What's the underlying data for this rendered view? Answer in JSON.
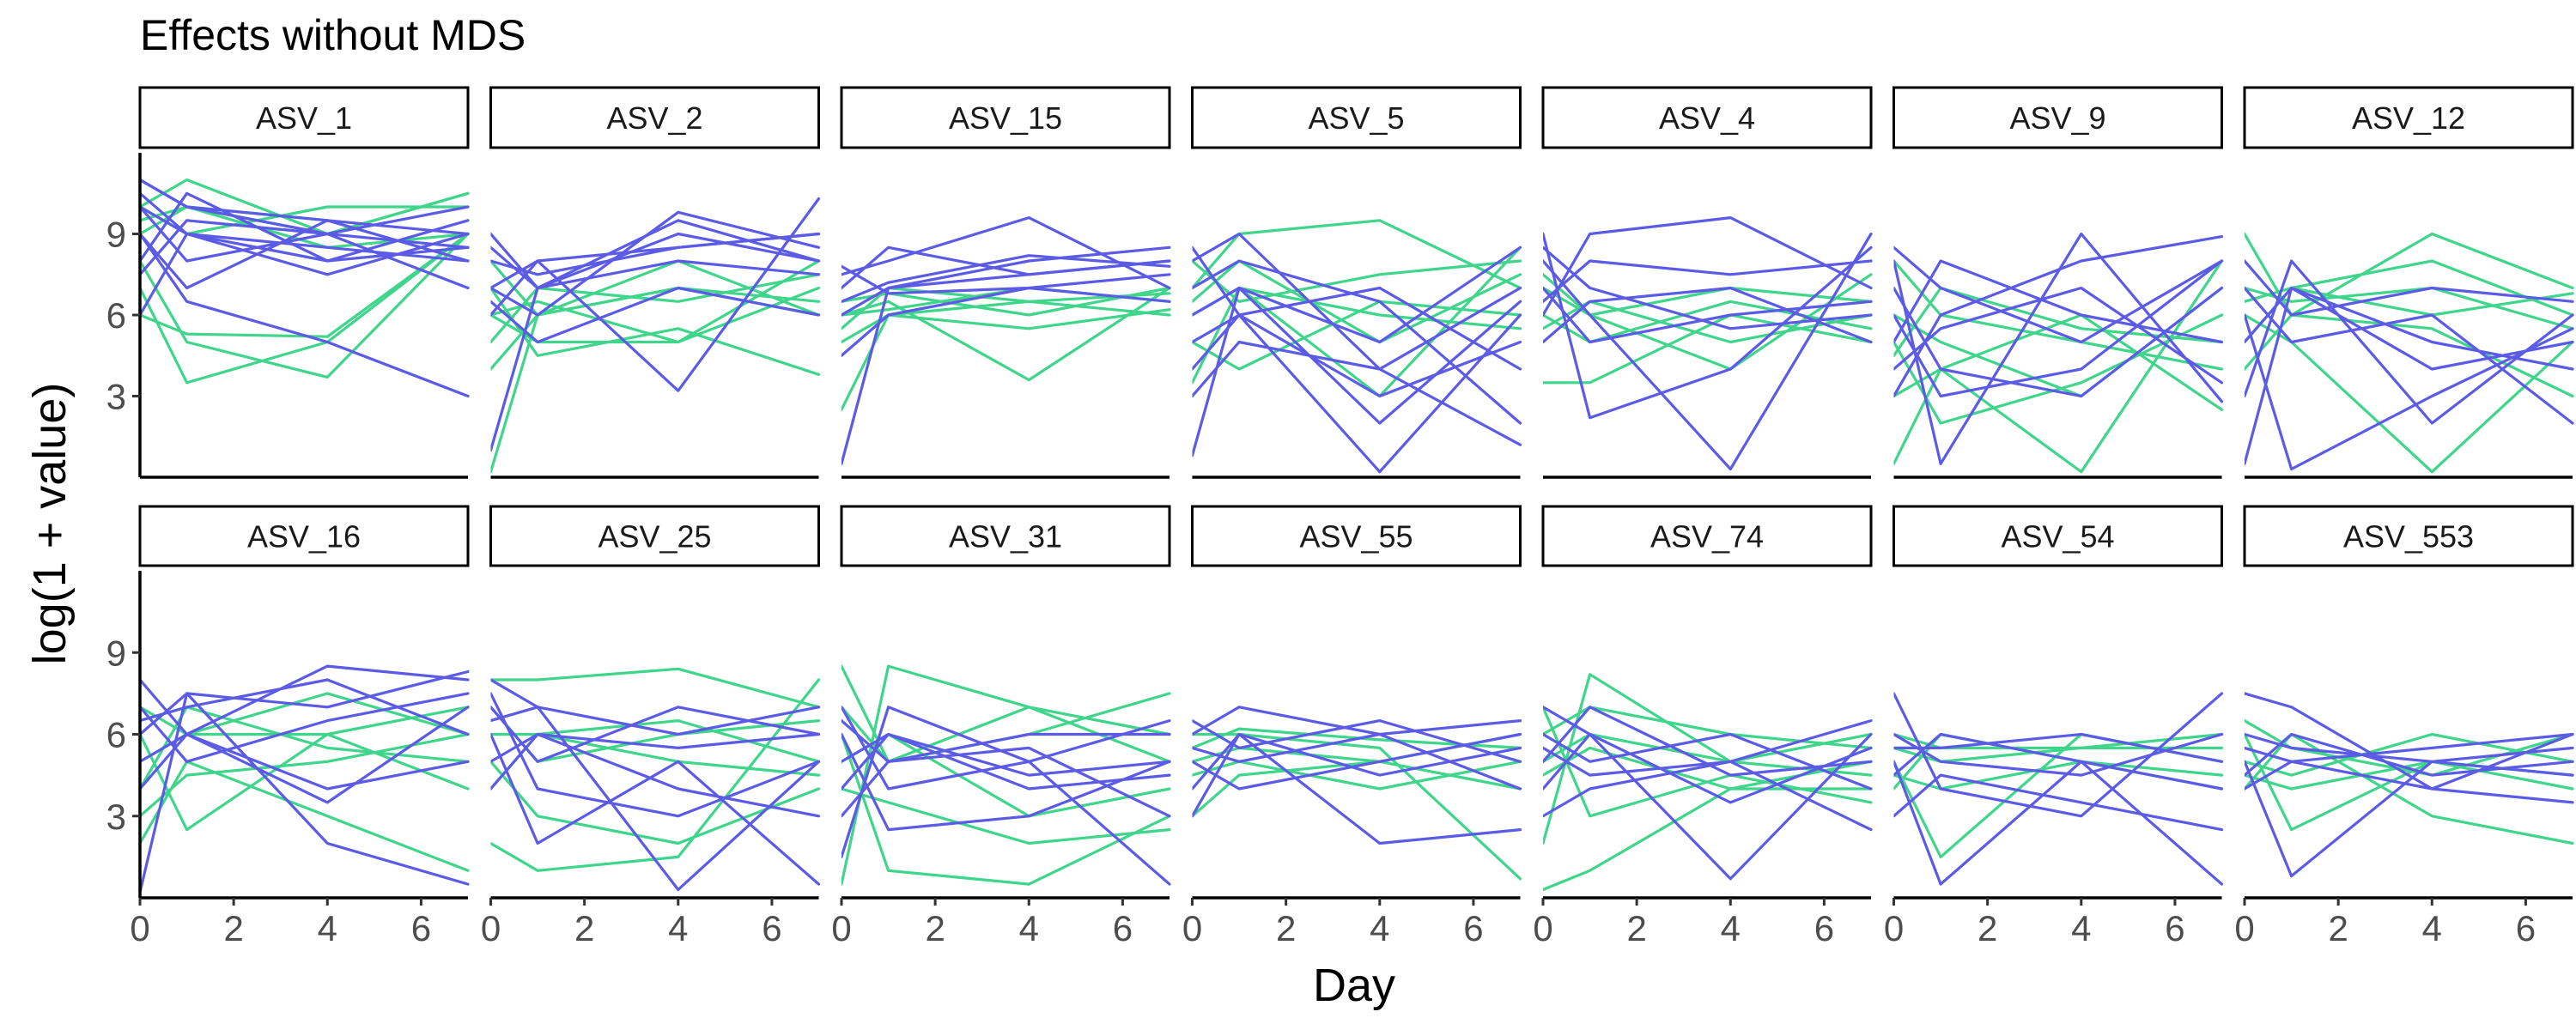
{
  "chart_data": {
    "type": "line",
    "title": "Effects without MDS",
    "xlabel": "Day",
    "ylabel": "log(1 + value)",
    "xlim": [
      0,
      7
    ],
    "ylim": [
      0,
      12
    ],
    "x_ticks": [
      0,
      2,
      4,
      6
    ],
    "y_ticks": [
      3,
      6,
      9
    ],
    "x_values": [
      0,
      1,
      4,
      7
    ],
    "grid": false,
    "legend": "none",
    "colors": {
      "group_a": "#5b5be6",
      "group_b": "#3fd58a"
    },
    "panels": [
      {
        "label": "ASV_1",
        "group_a": [
          [
            11,
            10,
            9,
            8.5
          ],
          [
            9,
            7,
            9.5,
            8
          ],
          [
            10,
            8,
            9,
            7
          ],
          [
            8,
            10.5,
            8,
            9.5
          ],
          [
            10.5,
            9,
            8.5,
            8
          ],
          [
            6,
            9,
            7.5,
            9
          ],
          [
            9,
            6.5,
            5,
            3
          ],
          [
            11,
            10,
            9.5,
            9
          ],
          [
            10,
            9,
            8,
            8.5
          ],
          [
            7.5,
            9.5,
            9,
            10
          ]
        ],
        "group_b": [
          [
            11,
            10,
            8.5,
            9
          ],
          [
            7,
            3.5,
            5,
            9
          ],
          [
            6,
            5.3,
            5.2,
            9
          ],
          [
            10,
            11,
            9,
            10.5
          ],
          [
            9,
            10,
            9.5,
            8
          ],
          [
            8,
            5,
            3.7,
            9
          ],
          [
            10,
            9,
            10,
            10
          ],
          [
            9.5,
            10,
            9,
            10.5
          ]
        ]
      },
      {
        "label": "ASV_2",
        "group_a": [
          [
            9,
            7,
            9.5,
            8
          ],
          [
            8,
            7.5,
            8.5,
            9
          ],
          [
            7,
            6,
            9.8,
            8.5
          ],
          [
            6,
            8,
            3.2,
            10.3
          ],
          [
            8.5,
            7,
            9,
            8
          ],
          [
            1,
            7,
            8,
            7.5
          ],
          [
            7,
            8,
            8.5,
            9
          ],
          [
            6.5,
            5,
            7,
            6
          ]
        ],
        "group_b": [
          [
            6,
            5,
            5,
            7
          ],
          [
            0.2,
            6,
            8,
            6
          ],
          [
            7,
            4.5,
            5.5,
            3.8
          ],
          [
            5,
            7,
            6.5,
            7.5
          ],
          [
            8,
            6,
            7,
            6.5
          ],
          [
            6,
            6.5,
            5,
            8
          ],
          [
            4,
            6,
            7,
            6
          ]
        ]
      },
      {
        "label": "ASV_15",
        "group_a": [
          [
            0.5,
            7,
            7.5,
            8
          ],
          [
            7.5,
            8,
            9.6,
            7
          ],
          [
            6,
            7,
            8,
            8.5
          ],
          [
            4.5,
            6,
            7,
            6.5
          ],
          [
            7,
            8.5,
            7.5,
            8
          ],
          [
            6.5,
            7.2,
            8.2,
            7.8
          ],
          [
            7.8,
            6.8,
            7,
            7.5
          ]
        ],
        "group_b": [
          [
            2.5,
            6,
            6.5,
            6
          ],
          [
            6,
            6.5,
            3.6,
            7
          ],
          [
            5,
            6,
            5.5,
            6.2
          ],
          [
            6.5,
            6.8,
            6,
            7
          ],
          [
            5.5,
            7,
            6.5,
            6.8
          ],
          [
            6,
            6.2,
            7,
            6.5
          ]
        ]
      },
      {
        "label": "ASV_5",
        "group_a": [
          [
            0.8,
            7,
            2,
            6.5
          ],
          [
            8,
            9,
            4,
            1.2
          ],
          [
            5,
            6,
            0.2,
            6
          ],
          [
            7,
            8,
            6.5,
            2
          ],
          [
            3,
            5,
            4,
            7
          ],
          [
            6,
            7,
            5,
            8.5
          ],
          [
            4,
            6,
            3,
            5
          ],
          [
            8.5,
            6,
            7,
            4
          ]
        ],
        "group_b": [
          [
            7,
            9,
            9.5,
            7
          ],
          [
            3.5,
            7,
            3,
            8.5
          ],
          [
            6,
            7,
            6,
            5.5
          ],
          [
            8,
            6.5,
            7.5,
            8
          ],
          [
            5,
            4,
            6.5,
            6
          ],
          [
            6.5,
            8,
            5,
            7.5
          ]
        ]
      },
      {
        "label": "ASV_4",
        "group_a": [
          [
            9,
            2.2,
            4,
            8.5
          ],
          [
            8,
            6,
            0.3,
            9
          ],
          [
            6,
            9,
            9.6,
            7
          ],
          [
            7,
            5,
            6,
            6.5
          ],
          [
            8.5,
            7,
            5.5,
            6
          ],
          [
            5,
            6.5,
            7,
            5
          ],
          [
            6.5,
            8,
            7.5,
            8
          ]
        ],
        "group_b": [
          [
            3.5,
            3.5,
            6,
            5
          ],
          [
            7,
            6,
            4,
            7.5
          ],
          [
            5.5,
            6.5,
            5,
            6
          ],
          [
            6,
            5,
            6.5,
            5.5
          ],
          [
            7.5,
            6,
            7,
            6.5
          ]
        ]
      },
      {
        "label": "ASV_9",
        "group_a": [
          [
            8,
            0.5,
            9,
            2.8
          ],
          [
            3,
            6,
            8,
            8.9
          ],
          [
            7,
            4,
            3,
            7
          ],
          [
            5,
            8,
            6,
            5
          ],
          [
            8.5,
            7,
            5,
            8
          ],
          [
            4,
            5.5,
            7,
            3.5
          ],
          [
            6,
            3,
            4,
            8
          ]
        ],
        "group_b": [
          [
            0.5,
            4,
            0.2,
            8
          ],
          [
            5,
            2,
            3.5,
            6
          ],
          [
            8,
            6,
            5,
            4
          ],
          [
            3,
            4,
            6,
            2.5
          ],
          [
            6,
            5,
            3,
            7
          ],
          [
            4.5,
            7,
            5.5,
            5
          ]
        ]
      },
      {
        "label": "ASV_12",
        "group_a": [
          [
            3,
            8,
            2,
            6
          ],
          [
            0.5,
            7,
            4,
            5
          ],
          [
            6,
            0.3,
            3,
            5.5
          ],
          [
            8,
            6,
            7,
            6.5
          ],
          [
            5,
            7,
            5,
            4
          ],
          [
            7,
            5,
            6,
            2
          ]
        ],
        "group_b": [
          [
            9,
            6,
            9,
            7
          ],
          [
            5,
            7,
            8,
            6
          ],
          [
            6,
            5,
            0.2,
            5
          ],
          [
            7,
            6.5,
            7,
            5.5
          ],
          [
            4,
            6,
            5.5,
            3
          ],
          [
            6.5,
            7,
            6,
            6.8
          ]
        ]
      },
      {
        "label": "ASV_16",
        "group_a": [
          [
            0.2,
            7.5,
            2,
            0.5
          ],
          [
            8,
            6,
            8.5,
            8
          ],
          [
            5,
            6,
            4,
            5
          ],
          [
            6.5,
            7,
            8,
            6
          ],
          [
            4,
            6,
            3.5,
            7
          ],
          [
            7,
            5,
            6.5,
            7.5
          ],
          [
            6,
            7.5,
            7,
            8.3
          ]
        ],
        "group_b": [
          [
            2,
            5,
            3,
            1
          ],
          [
            6,
            2.5,
            6,
            4
          ],
          [
            5,
            6,
            7.5,
            6
          ],
          [
            3,
            4.5,
            5,
            6
          ],
          [
            7,
            6,
            6,
            7
          ],
          [
            4,
            7,
            5.5,
            5
          ]
        ]
      },
      {
        "label": "ASV_25",
        "group_a": [
          [
            8,
            7,
            0.3,
            5
          ],
          [
            6,
            2,
            5,
            0.5
          ],
          [
            7,
            5,
            7,
            6
          ],
          [
            5,
            6,
            4,
            3
          ],
          [
            6.5,
            7,
            6,
            7
          ],
          [
            4,
            6,
            5.5,
            6
          ],
          [
            7.5,
            4,
            3,
            5
          ]
        ],
        "group_b": [
          [
            8,
            8,
            8.4,
            7
          ],
          [
            2,
            1,
            1.5,
            8
          ],
          [
            6,
            6,
            6.5,
            5
          ],
          [
            5,
            3,
            2,
            4
          ],
          [
            7,
            5,
            6,
            6.5
          ],
          [
            4,
            6,
            5,
            4.5
          ]
        ]
      },
      {
        "label": "ASV_31",
        "group_a": [
          [
            1.5,
            7,
            5,
            0.5
          ],
          [
            6,
            2.5,
            3,
            5
          ],
          [
            5,
            6,
            4,
            4.5
          ],
          [
            3,
            5,
            6,
            6
          ],
          [
            6.5,
            5,
            5.5,
            3
          ],
          [
            4,
            6,
            4.5,
            5
          ],
          [
            7,
            4,
            5,
            6.5
          ]
        ],
        "group_b": [
          [
            8.5,
            5,
            6,
            7.5
          ],
          [
            0.5,
            8.5,
            7,
            5
          ],
          [
            6,
            1,
            0.5,
            3
          ],
          [
            5,
            6,
            3,
            4
          ],
          [
            7,
            5,
            7,
            6
          ],
          [
            4,
            3.5,
            2,
            2.5
          ]
        ]
      },
      {
        "label": "ASV_55",
        "group_a": [
          [
            6,
            7,
            6,
            6.5
          ],
          [
            3,
            6,
            2,
            2.5
          ],
          [
            5,
            4,
            5,
            6
          ],
          [
            6.5,
            5.5,
            6.5,
            5
          ],
          [
            4,
            6,
            4.5,
            5.5
          ],
          [
            5.5,
            5,
            6,
            4
          ]
        ],
        "group_b": [
          [
            5,
            5.5,
            5,
            6
          ],
          [
            6,
            6,
            5.5,
            0.7
          ],
          [
            3,
            4.5,
            5,
            4
          ],
          [
            5.5,
            6.2,
            5.8,
            5.5
          ],
          [
            4.5,
            5,
            4,
            5
          ]
        ]
      },
      {
        "label": "ASV_74",
        "group_a": [
          [
            7,
            6,
            0.7,
            6
          ],
          [
            3,
            4,
            5,
            2.5
          ],
          [
            5,
            7,
            4.5,
            5
          ],
          [
            6,
            5,
            6,
            4
          ],
          [
            4,
            6,
            3.5,
            5.5
          ],
          [
            5.5,
            4.5,
            5,
            6.5
          ]
        ],
        "group_b": [
          [
            2,
            8.2,
            5,
            4.5
          ],
          [
            0.3,
            1,
            4,
            5
          ],
          [
            6,
            7,
            6,
            5.5
          ],
          [
            4.5,
            5.5,
            4,
            4
          ],
          [
            5,
            6,
            5,
            6
          ],
          [
            7,
            3,
            4.5,
            3.5
          ]
        ]
      },
      {
        "label": "ASV_54",
        "group_a": [
          [
            7.5,
            4,
            3,
            7.5
          ],
          [
            5,
            0.5,
            5,
            0.5
          ],
          [
            6,
            5,
            4.5,
            6
          ],
          [
            4.5,
            6,
            5,
            4
          ],
          [
            5.5,
            5.5,
            6,
            5
          ],
          [
            3,
            4.5,
            3.5,
            2.5
          ]
        ],
        "group_b": [
          [
            5,
            1.5,
            6,
            5
          ],
          [
            6,
            5.5,
            5.5,
            6
          ],
          [
            4,
            6,
            5,
            4.5
          ],
          [
            5.5,
            5,
            5.5,
            5.5
          ],
          [
            4.5,
            4,
            5,
            4
          ]
        ]
      },
      {
        "label": "ASV_553",
        "group_a": [
          [
            7.5,
            7,
            4,
            6
          ],
          [
            5,
            0.8,
            5,
            4.5
          ],
          [
            6,
            5.5,
            5,
            5.5
          ],
          [
            4.5,
            6,
            4.5,
            5
          ],
          [
            5.5,
            5,
            5.5,
            6
          ],
          [
            4,
            5,
            4,
            3.5
          ]
        ],
        "group_b": [
          [
            6,
            2.5,
            5,
            4.5
          ],
          [
            4,
            6,
            3,
            2
          ],
          [
            5,
            4.5,
            6,
            5
          ],
          [
            6.5,
            5.5,
            4.5,
            6
          ],
          [
            4.5,
            4,
            5,
            4
          ]
        ]
      }
    ]
  }
}
